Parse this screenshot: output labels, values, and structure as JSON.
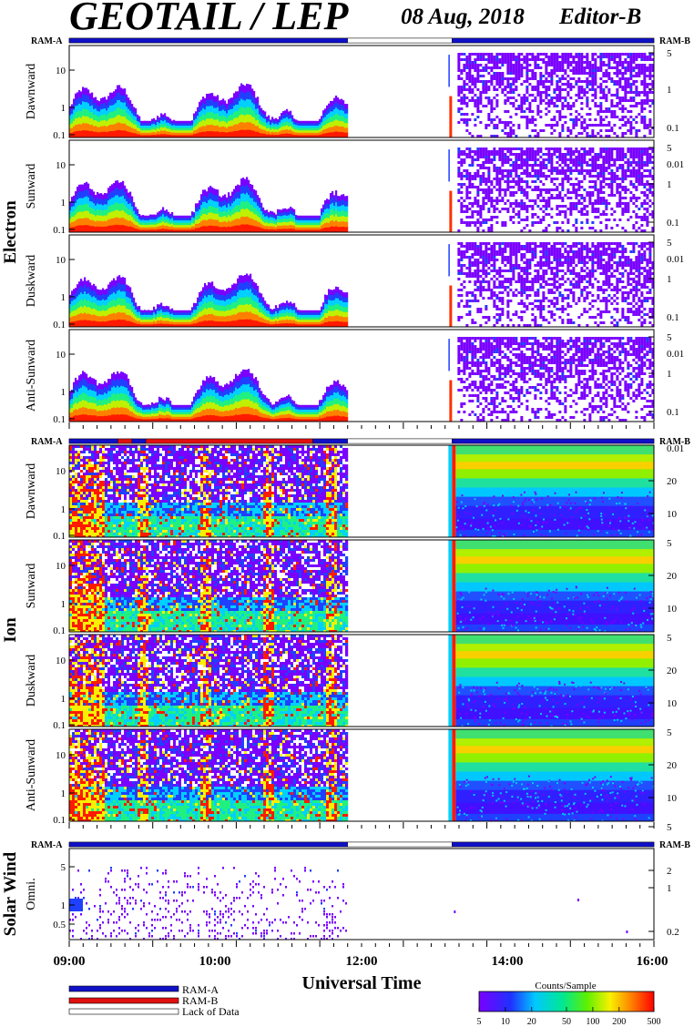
{
  "header": {
    "title": "GEOTAIL / LEP",
    "date": "08 Aug, 2018",
    "editor": "Editor-B"
  },
  "colors": {
    "ram_a": "#1010c8",
    "ram_b": "#e01010",
    "lack_of_data": "#ffffff",
    "background_low": "#7b00ff"
  },
  "chart_data": [
    {
      "type": "heatmap",
      "group": "Electron",
      "ram_left_label": "RAM-A",
      "ram_right_label": "RAM-B",
      "status_segments": [
        {
          "from": "09:00",
          "to": "12:20",
          "mode": "RAM-A"
        },
        {
          "from": "12:20",
          "to": "13:35",
          "mode": "Lack of Data"
        },
        {
          "from": "13:35",
          "to": "16:00",
          "mode": "RAM-A"
        }
      ],
      "left_ticks": [
        "10",
        "1",
        "0.1"
      ],
      "right_ticks": [
        "5",
        "1",
        "0.1",
        "0.01"
      ],
      "data_gap": {
        "from": "12:20",
        "to": "13:35"
      },
      "panels": [
        {
          "direction": "Dawnward"
        },
        {
          "direction": "Sunward"
        },
        {
          "direction": "Duskward"
        },
        {
          "direction": "Anti-Sunward"
        }
      ]
    },
    {
      "type": "heatmap",
      "group": "Ion",
      "ram_left_label": "RAM-A",
      "ram_right_label": "RAM-B",
      "status_segments": [
        {
          "from": "09:00",
          "to": "09:35",
          "mode": "RAM-A"
        },
        {
          "from": "09:35",
          "to": "09:45",
          "mode": "RAM-B"
        },
        {
          "from": "09:45",
          "to": "09:55",
          "mode": "RAM-A"
        },
        {
          "from": "09:55",
          "to": "11:55",
          "mode": "RAM-B"
        },
        {
          "from": "11:55",
          "to": "12:20",
          "mode": "RAM-A"
        },
        {
          "from": "12:20",
          "to": "13:35",
          "mode": "Lack of Data"
        },
        {
          "from": "13:35",
          "to": "16:00",
          "mode": "RAM-A"
        }
      ],
      "left_ticks": [
        "10",
        "1",
        "0.1"
      ],
      "right_ticks": [
        "20",
        "10",
        "5"
      ],
      "data_gap": {
        "from": "12:20",
        "to": "13:35"
      },
      "panels": [
        {
          "direction": "Dawnward"
        },
        {
          "direction": "Sunward"
        },
        {
          "direction": "Duskward"
        },
        {
          "direction": "Anti-Sunward"
        }
      ]
    },
    {
      "type": "heatmap",
      "group": "Solar Wind",
      "ram_left_label": "RAM-A",
      "ram_right_label": "RAM-B",
      "status_segments": [
        {
          "from": "09:00",
          "to": "12:20",
          "mode": "RAM-A"
        },
        {
          "from": "12:20",
          "to": "13:35",
          "mode": "Lack of Data"
        },
        {
          "from": "13:35",
          "to": "16:00",
          "mode": "RAM-A"
        }
      ],
      "left_ticks": [
        "5",
        "1",
        "0.5"
      ],
      "right_ticks": [
        "2",
        "1",
        "0.2"
      ],
      "panels": [
        {
          "direction": "Omni."
        }
      ]
    }
  ],
  "x_axis": {
    "label": "Universal Time",
    "range": [
      "09:00",
      "16:00"
    ],
    "tick_labels": [
      "09:00",
      "10:00",
      "12:00",
      "14:00",
      "16:00"
    ]
  },
  "legend": {
    "items": [
      {
        "label": "RAM-A",
        "color": "#1010c8"
      },
      {
        "label": "RAM-B",
        "color": "#e01010"
      },
      {
        "label": "Lack of Data",
        "color": "#ffffff"
      }
    ]
  },
  "colorbar": {
    "title": "Counts/Sample",
    "scale": "log",
    "range": [
      5,
      500
    ],
    "tick_labels": [
      "5",
      "10",
      "20",
      "50",
      "100",
      "200",
      "500"
    ]
  }
}
